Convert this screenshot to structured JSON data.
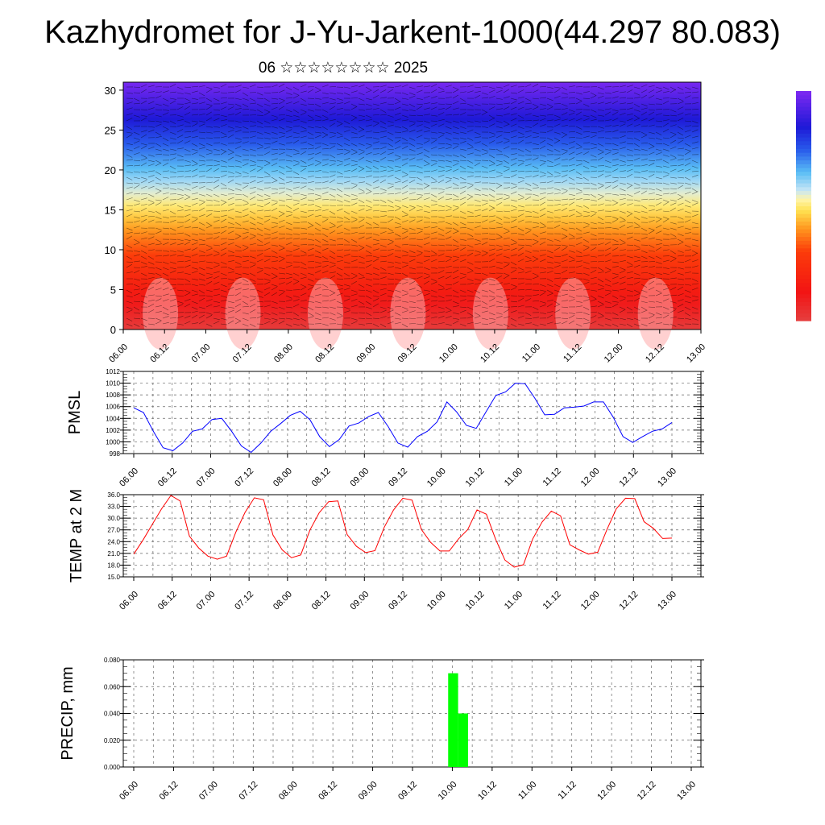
{
  "title": "Kazhydromet for J-Yu-Jarkent-1000(44.297 80.083)",
  "subtitle": "06 ☆☆☆☆☆☆☆☆ 2025",
  "chart_data": [
    {
      "type": "heatmap",
      "ylim": [
        0,
        31
      ],
      "yticks": [
        0,
        5,
        10,
        15,
        20,
        25,
        30
      ],
      "xticks": [
        "06.00",
        "06.12",
        "07.00",
        "07.12",
        "08.00",
        "08.12",
        "09.00",
        "09.12",
        "10.00",
        "10.12",
        "11.00",
        "11.12",
        "12.00",
        "12.12",
        "13.00"
      ],
      "colorbar": {
        "orientation": "vertical",
        "placement": "right",
        "labels": "none"
      }
    },
    {
      "type": "line",
      "ylabel": "PMSL",
      "ylim": [
        998,
        1012
      ],
      "yticks": [
        998,
        1000,
        1002,
        1004,
        1006,
        1008,
        1010,
        1012
      ],
      "xticks": [
        "06.00",
        "06.12",
        "07.00",
        "07.12",
        "08.00",
        "08.12",
        "09.00",
        "09.12",
        "10.00",
        "10.12",
        "11.00",
        "11.12",
        "12.00",
        "12.12",
        "13.00"
      ],
      "grid": true,
      "series": [
        {
          "color": "#0000ff",
          "values": [
            1005.8,
            1005,
            1001.8,
            999,
            998.5,
            999.8,
            1001.8,
            1002.2,
            1003.8,
            1004,
            1001.8,
            999.3,
            998.2,
            999.8,
            1001.8,
            1003.1,
            1004.5,
            1005.2,
            1003.8,
            1000.9,
            999.2,
            1000.4,
            1002.7,
            1003.2,
            1004.3,
            1005,
            1002.6,
            999.8,
            999.1,
            1000.9,
            1001.8,
            1003.4,
            1006.8,
            1005.1,
            1002.8,
            1002.3,
            1005.1,
            1007.9,
            1008.5,
            1010,
            1009.9,
            1007.4,
            1004.6,
            1004.7,
            1005.8,
            1005.9,
            1006.1,
            1006.8,
            1006.8,
            1004.2,
            1000.9,
            999.9,
            1000.9,
            1001.8,
            1002.2,
            1003.3
          ]
        }
      ]
    },
    {
      "type": "line",
      "ylabel": "TEMP at 2 M",
      "ylim": [
        15,
        36
      ],
      "yticks": [
        "15.0",
        "18.0",
        "21.0",
        "24.0",
        "27.0",
        "30.0",
        "33.0",
        "36.0"
      ],
      "xticks": [
        "06.00",
        "06.12",
        "07.00",
        "07.12",
        "08.00",
        "08.12",
        "09.00",
        "09.12",
        "10.00",
        "10.12",
        "11.00",
        "11.12",
        "12.00",
        "12.12",
        "13.00"
      ],
      "grid": true,
      "series": [
        {
          "color": "#ff0000",
          "values": [
            20.8,
            24.4,
            28.4,
            32.4,
            35.8,
            34.4,
            25.4,
            22.4,
            20.3,
            19.5,
            20.3,
            26.4,
            31.5,
            35.2,
            34.7,
            25.7,
            21.9,
            19.9,
            20.6,
            27,
            31.4,
            34.2,
            34.4,
            25.8,
            22.8,
            21.2,
            21.7,
            27.7,
            32.1,
            35.1,
            34.6,
            27.1,
            23.8,
            21.6,
            21.6,
            24.7,
            27.1,
            32.1,
            31,
            24.6,
            19.3,
            17.5,
            18.1,
            24.7,
            29,
            31.8,
            30.6,
            23.2,
            21.9,
            20.8,
            21.3,
            27.1,
            32.4,
            35.1,
            35,
            29.1,
            27.4,
            24.8,
            24.9
          ]
        }
      ]
    },
    {
      "type": "bar",
      "ylabel": "PRECIP, mm",
      "ylim": [
        0,
        0.08
      ],
      "yticks": [
        "0.000",
        "0.020",
        "0.040",
        "0.060",
        "0.080"
      ],
      "xticks": [
        "06.00",
        "06.12",
        "07.00",
        "07.12",
        "08.00",
        "08.12",
        "09.00",
        "09.12",
        "10.00",
        "10.12",
        "11.00",
        "11.12",
        "12.00",
        "12.12",
        "13.00"
      ],
      "grid": true,
      "color": "#00ff00",
      "bars": [
        {
          "x": "10.00",
          "value": 0.07
        },
        {
          "x": "10.03",
          "value": 0.04
        }
      ]
    }
  ]
}
